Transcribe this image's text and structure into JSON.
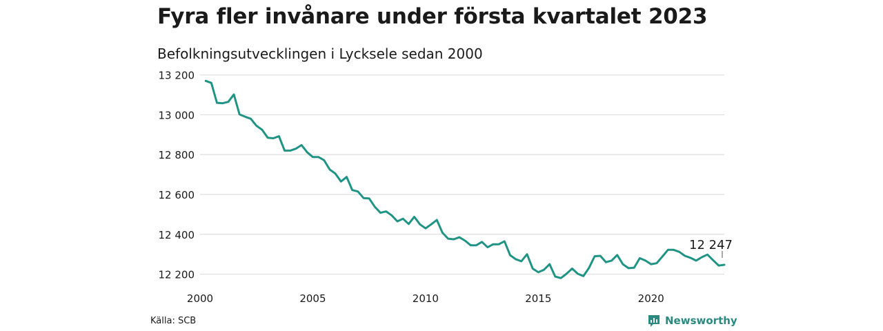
{
  "chart_data": {
    "type": "line",
    "title": "Fyra fler invånare under första kvartalet 2023",
    "subtitle": "Befolkningsutvecklingen i Lycksele sedan 2000",
    "xlim": [
      2000,
      2023.25
    ],
    "ylim": [
      12150,
      13230
    ],
    "x_ticks": [
      2000,
      2005,
      2010,
      2015,
      2020
    ],
    "x_tick_labels": [
      "2000",
      "2005",
      "2010",
      "2015",
      "2020"
    ],
    "y_ticks": [
      12200,
      12400,
      12600,
      12800,
      13000,
      13200
    ],
    "y_tick_labels": [
      "12 200",
      "12 400",
      "12 600",
      "12 800",
      "13 000",
      "13 200"
    ],
    "grid": true,
    "line_color": "#1f9384",
    "series": [
      {
        "x": [
          2000.25,
          2000.5,
          2000.75,
          2001,
          2001.25,
          2001.5,
          2001.75,
          2002,
          2002.25,
          2002.5,
          2002.75,
          2003,
          2003.25,
          2003.5,
          2003.75,
          2004,
          2004.25,
          2004.5,
          2004.75,
          2005,
          2005.25,
          2005.5,
          2005.75,
          2006,
          2006.25,
          2006.5,
          2006.75,
          2007,
          2007.25,
          2007.5,
          2007.75,
          2008,
          2008.25,
          2008.5,
          2008.75,
          2009,
          2009.25,
          2009.5,
          2009.75,
          2010,
          2010.25,
          2010.5,
          2010.75,
          2011,
          2011.25,
          2011.5,
          2011.75,
          2012,
          2012.25,
          2012.5,
          2012.75,
          2013,
          2013.25,
          2013.5,
          2013.75,
          2014,
          2014.25,
          2014.5,
          2014.75,
          2015,
          2015.25,
          2015.5,
          2015.75,
          2016,
          2016.25,
          2016.5,
          2016.75,
          2017,
          2017.25,
          2017.5,
          2017.75,
          2018,
          2018.25,
          2018.5,
          2018.75,
          2019,
          2019.25,
          2019.5,
          2019.75,
          2020,
          2020.25,
          2020.5,
          2020.75,
          2021,
          2021.25,
          2021.5,
          2021.75,
          2022,
          2022.25,
          2022.5,
          2022.75,
          2023,
          2023.25
        ],
        "y": [
          13170,
          13160,
          13060,
          13058,
          13065,
          13102,
          13002,
          12990,
          12980,
          12945,
          12925,
          12885,
          12882,
          12892,
          12820,
          12820,
          12830,
          12848,
          12812,
          12788,
          12788,
          12772,
          12725,
          12705,
          12665,
          12688,
          12622,
          12615,
          12582,
          12580,
          12538,
          12508,
          12515,
          12495,
          12465,
          12478,
          12452,
          12488,
          12450,
          12430,
          12450,
          12472,
          12408,
          12378,
          12375,
          12385,
          12368,
          12345,
          12345,
          12362,
          12335,
          12350,
          12350,
          12365,
          12295,
          12275,
          12265,
          12300,
          12228,
          12210,
          12222,
          12250,
          12188,
          12180,
          12202,
          12228,
          12202,
          12190,
          12232,
          12290,
          12292,
          12260,
          12268,
          12296,
          12250,
          12230,
          12232,
          12280,
          12268,
          12250,
          12255,
          12288,
          12322,
          12322,
          12312,
          12292,
          12282,
          12268,
          12285,
          12298,
          12270,
          12243,
          12247
        ]
      }
    ],
    "annotation": {
      "text": "12 247",
      "x": 2023.25,
      "y": 12247
    },
    "source": "Källa: SCB",
    "brand": "Newsworthy"
  }
}
